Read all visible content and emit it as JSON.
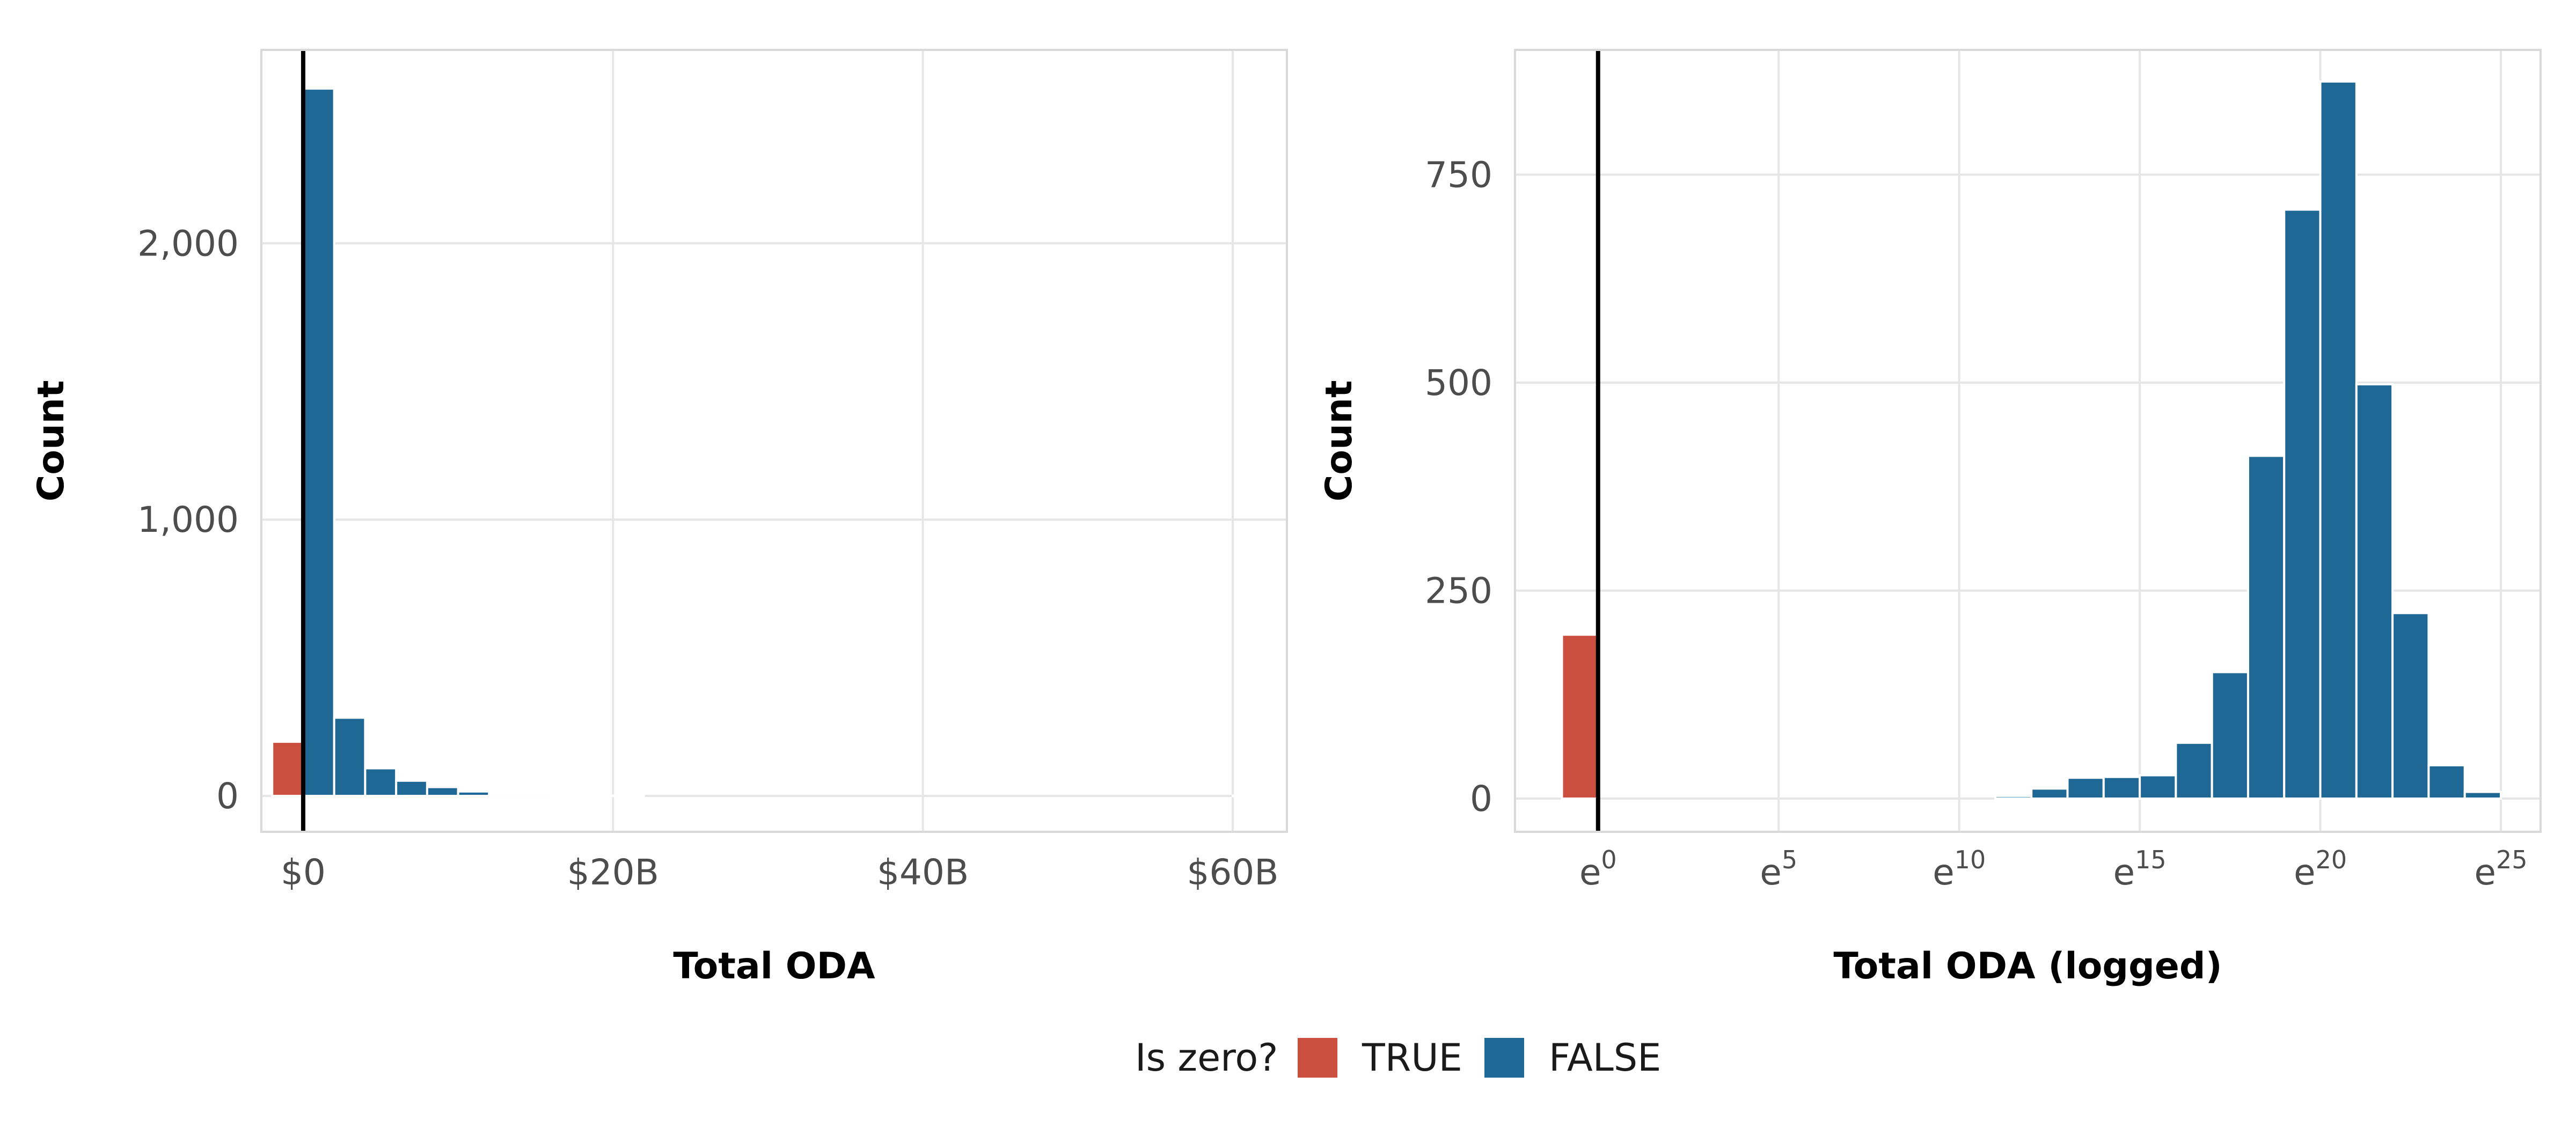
{
  "colors": {
    "true": "#CB4F3E",
    "false": "#1F6896",
    "grid": "#E6E6E6",
    "panel_border": "#D9D9D9",
    "zero_line": "#000000"
  },
  "legend": {
    "title": "Is zero?",
    "items": [
      {
        "label": "TRUE",
        "color_key": "true"
      },
      {
        "label": "FALSE",
        "color_key": "false"
      }
    ]
  },
  "chart_data": [
    {
      "type": "bar",
      "subtype": "histogram",
      "xlabel": "Total ODA",
      "ylabel": "Count",
      "xlim": [
        -2700000000,
        63500000000
      ],
      "ylim": [
        -130,
        2700
      ],
      "x_unit": "USD",
      "x_ticks": [
        {
          "value": 0,
          "label": "$0"
        },
        {
          "value": 20000000000,
          "label": "$20B"
        },
        {
          "value": 40000000000,
          "label": "$40B"
        },
        {
          "value": 60000000000,
          "label": "$60B"
        }
      ],
      "y_ticks": [
        {
          "value": 0,
          "label": "0"
        },
        {
          "value": 1000,
          "label": "1,000"
        },
        {
          "value": 2000,
          "label": "2,000"
        }
      ],
      "grid": true,
      "zero_line_x": 0,
      "series": [
        {
          "name": "TRUE",
          "color_key": "true",
          "bins": [
            {
              "x0": -2000000000,
              "x1": 0,
              "count": 196
            }
          ]
        },
        {
          "name": "FALSE",
          "color_key": "false",
          "bins": [
            {
              "x0": 0,
              "x1": 2000000000,
              "count": 2560
            },
            {
              "x0": 2000000000,
              "x1": 4000000000,
              "count": 283
            },
            {
              "x0": 4000000000,
              "x1": 6000000000,
              "count": 100
            },
            {
              "x0": 6000000000,
              "x1": 8000000000,
              "count": 55
            },
            {
              "x0": 8000000000,
              "x1": 10000000000,
              "count": 32
            },
            {
              "x0": 10000000000,
              "x1": 12000000000,
              "count": 16
            },
            {
              "x0": 12000000000,
              "x1": 14000000000,
              "count": 6
            },
            {
              "x0": 14000000000,
              "x1": 16000000000,
              "count": 2
            },
            {
              "x0": 16000000000,
              "x1": 18000000000,
              "count": 1
            },
            {
              "x0": 18000000000,
              "x1": 20000000000,
              "count": 1
            },
            {
              "x0": 20000000000,
              "x1": 22000000000,
              "count": 1
            },
            {
              "x0": 60000000000,
              "x1": 62000000000,
              "count": 1
            },
            {
              "x0": 62000000000,
              "x1": 64000000000,
              "count": 1
            }
          ]
        }
      ]
    },
    {
      "type": "bar",
      "subtype": "histogram",
      "xlabel": "Total ODA (logged)",
      "ylabel": "Count",
      "x_scale": "natural log",
      "xlim": [
        -2.3,
        26.1
      ],
      "ylim": [
        -40,
        900
      ],
      "x_ticks": [
        {
          "value": 0,
          "base": "e",
          "exp": "0"
        },
        {
          "value": 5,
          "base": "e",
          "exp": "5"
        },
        {
          "value": 10,
          "base": "e",
          "exp": "10"
        },
        {
          "value": 15,
          "base": "e",
          "exp": "15"
        },
        {
          "value": 20,
          "base": "e",
          "exp": "20"
        },
        {
          "value": 25,
          "base": "e",
          "exp": "25"
        }
      ],
      "y_ticks": [
        {
          "value": 0,
          "label": "0"
        },
        {
          "value": 250,
          "label": "250"
        },
        {
          "value": 500,
          "label": "500"
        },
        {
          "value": 750,
          "label": "750"
        }
      ],
      "grid": true,
      "zero_line_x": 0,
      "series": [
        {
          "name": "TRUE",
          "color_key": "true",
          "bins": [
            {
              "x0": -1,
              "x1": 0,
              "count": 197
            }
          ]
        },
        {
          "name": "FALSE",
          "color_key": "false",
          "bins": [
            {
              "x0": 11,
              "x1": 12,
              "count": 3
            },
            {
              "x0": 12,
              "x1": 13,
              "count": 12
            },
            {
              "x0": 13,
              "x1": 14,
              "count": 25
            },
            {
              "x0": 14,
              "x1": 15,
              "count": 26
            },
            {
              "x0": 15,
              "x1": 16,
              "count": 28
            },
            {
              "x0": 16,
              "x1": 17,
              "count": 67
            },
            {
              "x0": 17,
              "x1": 18,
              "count": 152
            },
            {
              "x0": 18,
              "x1": 19,
              "count": 412
            },
            {
              "x0": 19,
              "x1": 20,
              "count": 708
            },
            {
              "x0": 20,
              "x1": 21,
              "count": 862
            },
            {
              "x0": 21,
              "x1": 22,
              "count": 498
            },
            {
              "x0": 22,
              "x1": 23,
              "count": 223
            },
            {
              "x0": 23,
              "x1": 24,
              "count": 40
            },
            {
              "x0": 24,
              "x1": 25,
              "count": 8
            }
          ]
        }
      ]
    }
  ]
}
